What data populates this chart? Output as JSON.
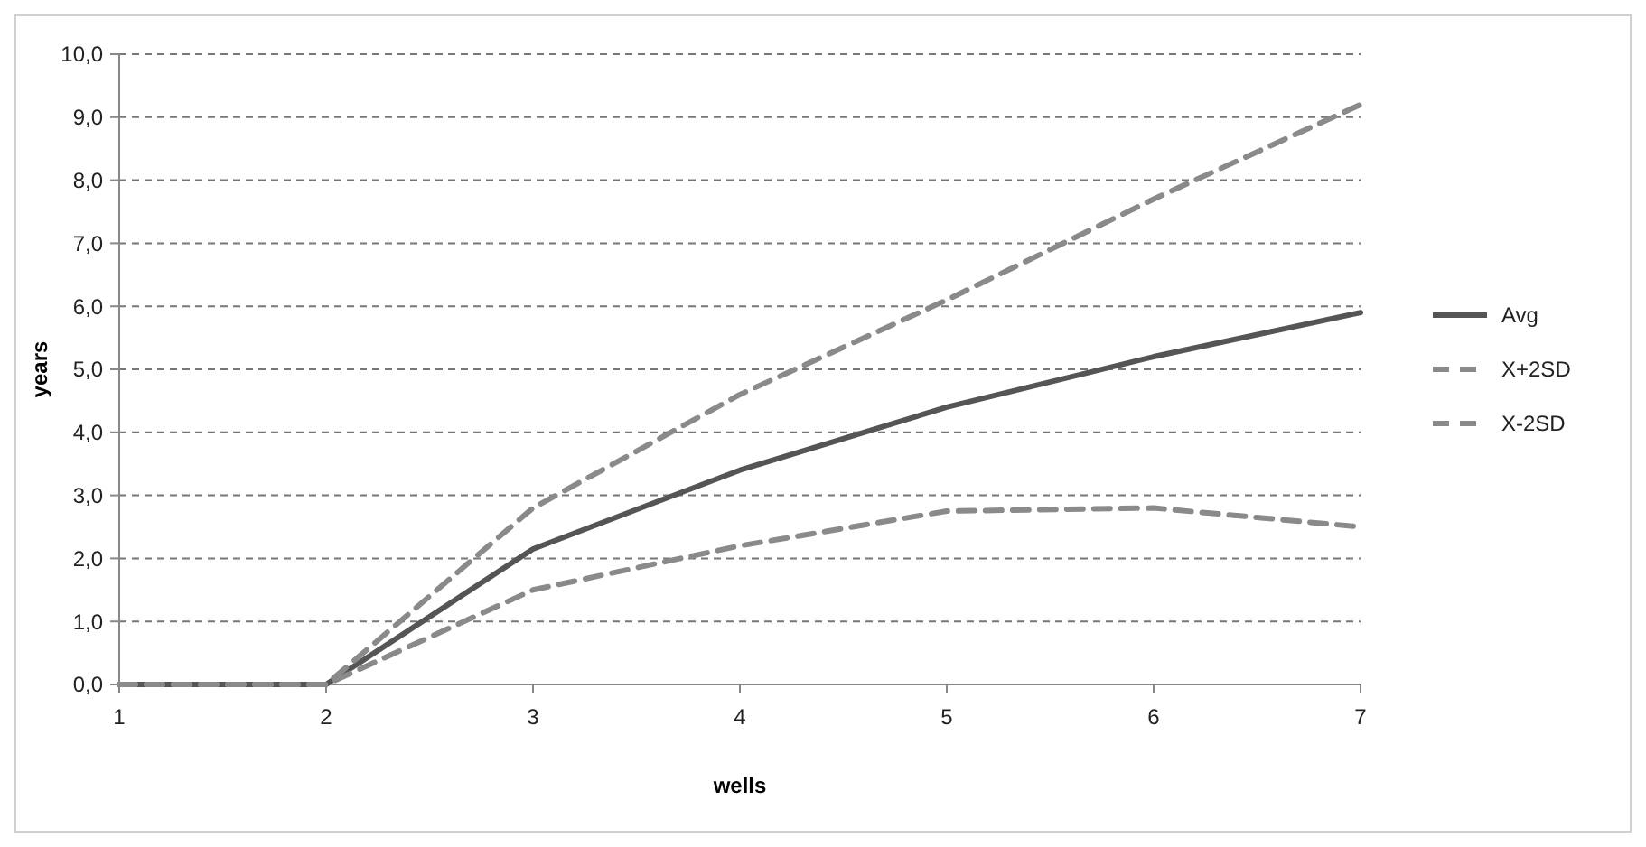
{
  "chart_data": {
    "type": "line",
    "xlabel": "wells",
    "ylabel": "years",
    "x": [
      1,
      2,
      3,
      4,
      5,
      6,
      7
    ],
    "series": [
      {
        "name": "Avg",
        "color": "#555555",
        "line_style": "solid",
        "values": [
          0,
          0,
          2.15,
          3.4,
          4.4,
          5.2,
          5.9
        ]
      },
      {
        "name": "X+2SD",
        "color": "#8a8a8a",
        "line_style": "dashed",
        "values": [
          0,
          0,
          2.8,
          4.6,
          6.1,
          7.7,
          9.2
        ]
      },
      {
        "name": "X-2SD",
        "color": "#8a8a8a",
        "line_style": "dashed",
        "values": [
          0,
          0,
          1.5,
          2.2,
          2.75,
          2.8,
          2.5
        ]
      }
    ],
    "xlim": [
      1,
      7
    ],
    "xticks": [
      1,
      2,
      3,
      4,
      5,
      6,
      7
    ],
    "ylim": [
      0,
      10
    ],
    "yticks": [
      {
        "value": 0,
        "label": "0,0"
      },
      {
        "value": 1,
        "label": "1,0"
      },
      {
        "value": 2,
        "label": "2,0"
      },
      {
        "value": 3,
        "label": "3,0"
      },
      {
        "value": 4,
        "label": "4,0"
      },
      {
        "value": 5,
        "label": "5,0"
      },
      {
        "value": 6,
        "label": "6,0"
      },
      {
        "value": 7,
        "label": "7,0"
      },
      {
        "value": 8,
        "label": "8,0"
      },
      {
        "value": 9,
        "label": "9,0"
      },
      {
        "value": 10,
        "label": "10,0"
      }
    ],
    "grid": "y",
    "legend": "right",
    "marker": "none"
  }
}
